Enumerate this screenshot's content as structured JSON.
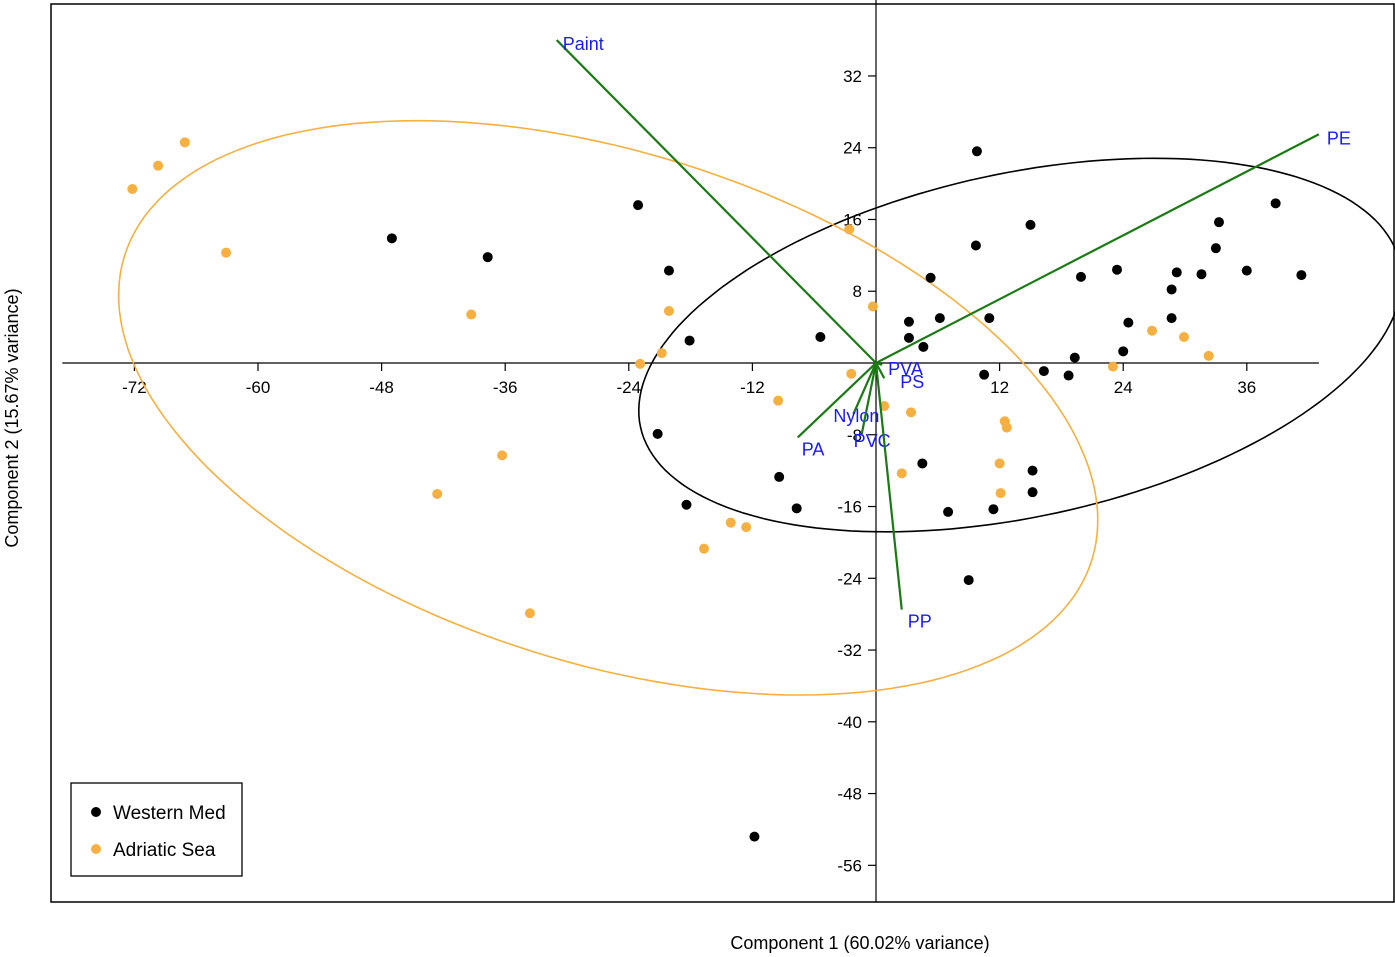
{
  "chart_data": {
    "type": "scatter",
    "title": "",
    "xlabel": "Component 1 (60.02% variance)",
    "ylabel": "Component 2 (15.67% variance)",
    "xlim": [
      -79,
      43
    ],
    "ylim": [
      -60,
      40
    ],
    "x_ticks": [
      -72,
      -60,
      -48,
      -36,
      -24,
      -12,
      12,
      24,
      36
    ],
    "y_ticks": [
      32,
      24,
      16,
      8,
      -8,
      -16,
      -24,
      -32,
      -40,
      -48,
      -56
    ],
    "grid": false,
    "legend_position": "bottom-left",
    "series": [
      {
        "name": "Western Med",
        "color": "#000000",
        "points": [
          [
            -47,
            13.9
          ],
          [
            -37.7,
            11.8
          ],
          [
            -23.1,
            17.6
          ],
          [
            -20.1,
            10.3
          ],
          [
            -18.1,
            2.5
          ],
          [
            -5.4,
            2.9
          ],
          [
            3.2,
            4.6
          ],
          [
            3.2,
            2.8
          ],
          [
            4.6,
            1.8
          ],
          [
            6.2,
            5.0
          ],
          [
            5.3,
            9.5
          ],
          [
            9.7,
            13.1
          ],
          [
            9.8,
            23.6
          ],
          [
            15.0,
            15.4
          ],
          [
            11.0,
            5.0
          ],
          [
            10.5,
            -1.3
          ],
          [
            16.3,
            -0.9
          ],
          [
            18.7,
            -1.4
          ],
          [
            19.3,
            0.6
          ],
          [
            19.9,
            9.6
          ],
          [
            23.4,
            10.4
          ],
          [
            24.0,
            1.3
          ],
          [
            24.5,
            4.5
          ],
          [
            28.7,
            8.2
          ],
          [
            29.2,
            10.1
          ],
          [
            28.7,
            5.0
          ],
          [
            31.6,
            9.9
          ],
          [
            33.0,
            12.8
          ],
          [
            33.3,
            15.7
          ],
          [
            36.0,
            10.3
          ],
          [
            38.8,
            17.8
          ],
          [
            41.3,
            9.8
          ],
          [
            -21.2,
            -7.9
          ],
          [
            -18.4,
            -15.8
          ],
          [
            -9.4,
            -12.7
          ],
          [
            -7.7,
            -16.2
          ],
          [
            4.5,
            -11.2
          ],
          [
            7.0,
            -16.6
          ],
          [
            11.4,
            -16.3
          ],
          [
            15.2,
            -12.0
          ],
          [
            15.2,
            -14.4
          ],
          [
            9.0,
            -24.2
          ],
          [
            -11.8,
            -52.8
          ]
        ]
      },
      {
        "name": "Adriatic Sea",
        "color": "#f5b041",
        "points": [
          [
            -72.2,
            19.4
          ],
          [
            -69.7,
            22.0
          ],
          [
            -67.1,
            24.6
          ],
          [
            -63.1,
            12.3
          ],
          [
            -39.3,
            5.4
          ],
          [
            -36.3,
            -10.3
          ],
          [
            -33.6,
            -27.9
          ],
          [
            -42.6,
            -14.6
          ],
          [
            -20.1,
            5.8
          ],
          [
            -20.8,
            1.1
          ],
          [
            -22.9,
            -0.1
          ],
          [
            -9.5,
            -4.2
          ],
          [
            -14.1,
            -17.8
          ],
          [
            -12.6,
            -18.3
          ],
          [
            -16.7,
            -20.7
          ],
          [
            -2.6,
            14.9
          ],
          [
            -0.3,
            6.3
          ],
          [
            -2.4,
            -1.2
          ],
          [
            0.8,
            -4.8
          ],
          [
            3.4,
            -5.5
          ],
          [
            2.5,
            -12.3
          ],
          [
            12.5,
            -6.5
          ],
          [
            12.7,
            -7.2
          ],
          [
            12.0,
            -11.2
          ],
          [
            12.1,
            -14.5
          ],
          [
            23.0,
            -0.4
          ],
          [
            26.8,
            3.6
          ],
          [
            29.9,
            2.9
          ],
          [
            32.3,
            0.8
          ]
        ]
      }
    ],
    "ellipses": [
      {
        "group": "Western Med",
        "color": "#000000",
        "cx": 14.0,
        "cy": 2.0,
        "rx": 38.0,
        "ry": 19.0,
        "rotation_deg": 15
      },
      {
        "group": "Adriatic Sea",
        "color": "#f5b041",
        "cx": -26.0,
        "cy": -5.0,
        "rx": 50.0,
        "ry": 28.0,
        "rotation_deg": -22
      }
    ],
    "loadings": {
      "color": "#1a7a14",
      "label_color": "#1a1aff",
      "vectors": [
        {
          "label": "Paint",
          "x": -31.0,
          "y": 36.0
        },
        {
          "label": "PE",
          "x": 43.0,
          "y": 25.5
        },
        {
          "label": "PVA",
          "x": 0.6,
          "y": -0.2
        },
        {
          "label": "PS",
          "x": 0.8,
          "y": -1.7
        },
        {
          "label": "Nylon",
          "x": -2.2,
          "y": -5.7
        },
        {
          "label": "PVC",
          "x": -1.4,
          "y": -8.0
        },
        {
          "label": "PA",
          "x": -7.6,
          "y": -8.3
        },
        {
          "label": "PP",
          "x": 2.5,
          "y": -27.5
        }
      ]
    },
    "legend": [
      {
        "label": "Western Med",
        "color": "#000000"
      },
      {
        "label": "Adriatic Sea",
        "color": "#f5b041"
      }
    ]
  }
}
